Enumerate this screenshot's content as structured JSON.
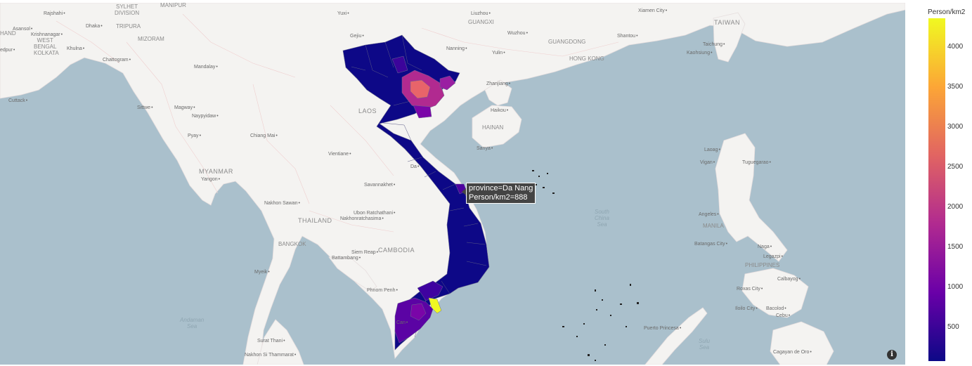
{
  "colorbar": {
    "title": "Person/km2",
    "ticks": [
      {
        "label": "4000",
        "value": 4000
      },
      {
        "label": "3500",
        "value": 3500
      },
      {
        "label": "3000",
        "value": 3000
      },
      {
        "label": "2500",
        "value": 2500
      },
      {
        "label": "2000",
        "value": 2000
      },
      {
        "label": "1500",
        "value": 1500
      },
      {
        "label": "1000",
        "value": 1000
      },
      {
        "label": "500",
        "value": 500
      }
    ],
    "range": [
      80,
      4360
    ],
    "colorscale": [
      "#0d0887",
      "#6a00a8",
      "#b12a90",
      "#e16462",
      "#fca636",
      "#f0f921"
    ]
  },
  "tooltip": {
    "line1": "province=Da Nang",
    "line2": "Person/km2=888"
  },
  "info_button": {
    "glyph": "i"
  },
  "labels": {
    "sylhet_division": "SYLHET\nDIVISION",
    "tripura": "TRIPURA",
    "mizoram": "MIZORAM",
    "manipur": "MANIPUR",
    "west_bengal": "WEST\nBENGAL",
    "kolkata": "KOLKATA",
    "rajshahi": "Rajshahi",
    "dhaka": "Dhaka",
    "asansol": "Asansol",
    "krishnanagar": "Krishnanagar",
    "khulna": "Khulna",
    "hand": "HAND",
    "edpur": "edpur",
    "chattogram": "Chattogram",
    "cuttack": "Cuttack",
    "mandalay": "Mandalay",
    "sittwe": "Sittwe",
    "magway": "Magway",
    "naypyidaw": "Naypyidaw",
    "pyay": "Pyay",
    "myanmar": "MYANMAR",
    "yangon": "Yangon",
    "chiang_mai": "Chiang Mai",
    "laos": "LAOS",
    "vientiane": "Vientiane",
    "savannakhet": "Savannakhet",
    "thailand": "THAILAND",
    "nakhon_sawan": "Nakhon Sawan",
    "ubon": "Ubon Ratchathani",
    "nakhonratchasima": "Nakhonratchasima",
    "bangkok": "BANGKOK",
    "cambodia": "CAMBODIA",
    "siem_reap": "Siem Reap",
    "battambang": "Battambang",
    "phnom_penh": "Phnom Penh",
    "myeik": "Myeik",
    "can_tho": "Can",
    "surat_thani": "Surat Thani",
    "nakhon_si": "Nakhon Si Thammarat",
    "andaman_sea": "Andaman\nSea",
    "yuxi": "Yuxi",
    "liuzhou": "Liuzhou",
    "guangxi": "GUANGXI",
    "gejiu": "Gejiu",
    "wuzhou": "Wuzhou",
    "guangdong": "GUANGDONG",
    "shantou": "Shantou",
    "xiamen": "Xiamen City",
    "taiwan": "TAIWAN",
    "taichung": "Taichung",
    "kaohsiung": "Kaohsiung",
    "nanning": "Nanning",
    "yulin": "Yulin",
    "hong_kong": "HONG KONG",
    "zhanjiang": "Zhanjiang",
    "haikou": "Haikou",
    "hainan": "HAINAN",
    "sanya": "Sanya",
    "danang_lbl": "Da",
    "south_china_sea": "South\nChina\nSea",
    "laoag": "Laoag",
    "vigan": "Vigan",
    "tuguegarao": "Tuguegarao",
    "angeles": "Angeles",
    "manila": "MANILA",
    "batangas": "Batangas City",
    "naga": "Naga",
    "legazpi": "Legazpi",
    "philippines": "PHILIPPINES",
    "calbayog": "Calbayog",
    "roxas": "Roxas City",
    "iloilo": "Iloilo City",
    "bacolod": "Bacolod",
    "cebu": "Cebu",
    "puerto_princesa": "Puerto Princesa",
    "sulu_sea": "Sulu\nSea",
    "cagayan": "Cagayan de Oro"
  }
}
